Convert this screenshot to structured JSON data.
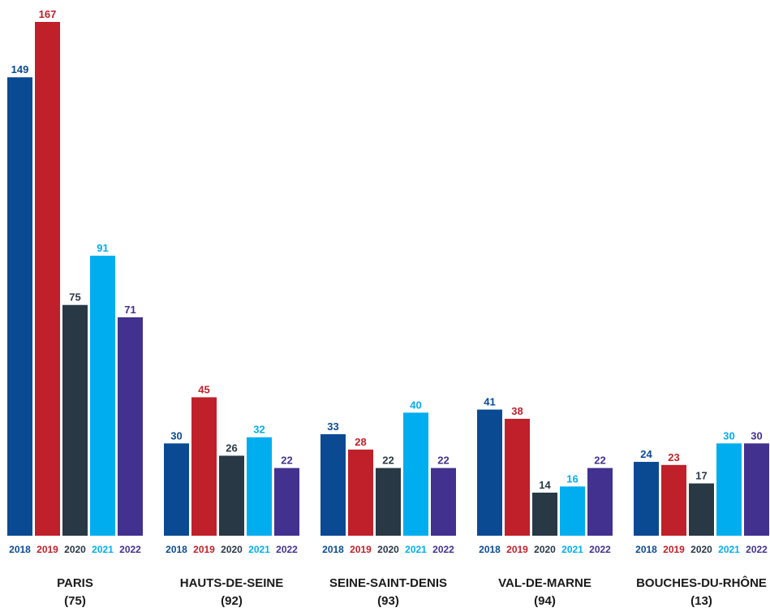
{
  "chart_data": {
    "type": "bar",
    "title": "",
    "xlabel": "",
    "ylabel": "",
    "ylim": [
      0,
      167
    ],
    "grid": false,
    "legend": "none",
    "series": [
      {
        "name": "2018",
        "color": "#0a4a93"
      },
      {
        "name": "2019",
        "color": "#c0202a"
      },
      {
        "name": "2020",
        "color": "#283845"
      },
      {
        "name": "2021",
        "color": "#00aeef"
      },
      {
        "name": "2022",
        "color": "#43318f"
      }
    ],
    "groups": [
      {
        "name": "PARIS",
        "code": "(75)",
        "values": [
          149,
          167,
          75,
          91,
          71
        ]
      },
      {
        "name": "HAUTS-DE-SEINE",
        "code": "(92)",
        "values": [
          30,
          45,
          26,
          32,
          22
        ]
      },
      {
        "name": "SEINE-SAINT-DENIS",
        "code": "(93)",
        "values": [
          33,
          28,
          22,
          40,
          22
        ]
      },
      {
        "name": "VAL-DE-MARNE",
        "code": "(94)",
        "values": [
          41,
          38,
          14,
          16,
          22
        ]
      },
      {
        "name": "BOUCHES-DU-RHÔNE",
        "code": "(13)",
        "values": [
          24,
          23,
          17,
          30,
          30
        ]
      }
    ]
  }
}
